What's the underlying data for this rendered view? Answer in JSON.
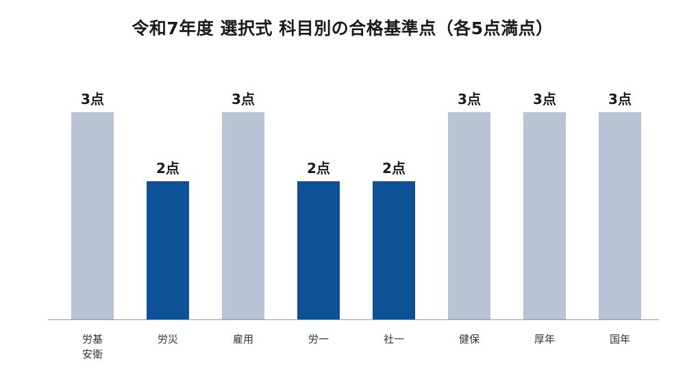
{
  "title": "令和7年度 選択式 科目別の合格基準点（各5点満点）",
  "chart_data": {
    "type": "bar",
    "title": "令和7年度 選択式 科目別の合格基準点（各5点満点）",
    "categories": [
      "労基安衛",
      "労災",
      "雇用",
      "労一",
      "社一",
      "健保",
      "厚年",
      "国年"
    ],
    "category_lines": [
      [
        "労基",
        "安衛"
      ],
      [
        "労災"
      ],
      [
        "雇用"
      ],
      [
        "労一"
      ],
      [
        "社一"
      ],
      [
        "健保"
      ],
      [
        "厚年"
      ],
      [
        "国年"
      ]
    ],
    "values": [
      3,
      2,
      3,
      2,
      2,
      3,
      3,
      3
    ],
    "value_labels": [
      "3点",
      "2点",
      "3点",
      "2点",
      "2点",
      "3点",
      "3点",
      "3点"
    ],
    "ylim": [
      0,
      3
    ],
    "xlabel": "",
    "ylabel": "",
    "grid": false,
    "legend": "none",
    "colors": {
      "standard": "#b7c4d6",
      "lowered": "#0d5297",
      "axis": "#999999"
    }
  }
}
